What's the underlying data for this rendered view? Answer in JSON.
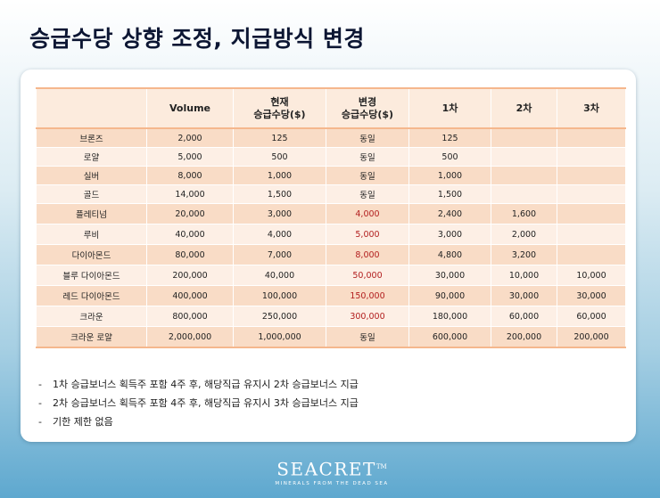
{
  "title": "승급수당 상향 조정, 지급방식 변경",
  "table": {
    "headers": [
      "",
      "Volume",
      "현재\n승급수당($)",
      "변경\n승급수당($)",
      "1차",
      "2차",
      "3차"
    ],
    "rows": [
      [
        "브론즈",
        "2,000",
        "125",
        "동일",
        "125",
        "",
        ""
      ],
      [
        "로얄",
        "5,000",
        "500",
        "동일",
        "500",
        "",
        ""
      ],
      [
        "실버",
        "8,000",
        "1,000",
        "동일",
        "1,000",
        "",
        ""
      ],
      [
        "골드",
        "14,000",
        "1,500",
        "동일",
        "1,500",
        "",
        ""
      ],
      [
        "플레티넘",
        "20,000",
        "3,000",
        "4,000",
        "2,400",
        "1,600",
        ""
      ],
      [
        "루비",
        "40,000",
        "4,000",
        "5,000",
        "3,000",
        "2,000",
        ""
      ],
      [
        "다이아몬드",
        "80,000",
        "7,000",
        "8,000",
        "4,800",
        "3,200",
        ""
      ],
      [
        "블루 다이아몬드",
        "200,000",
        "40,000",
        "50,000",
        "30,000",
        "10,000",
        "10,000"
      ],
      [
        "레드 다이아몬드",
        "400,000",
        "100,000",
        "150,000",
        "90,000",
        "30,000",
        "30,000"
      ],
      [
        "크라운",
        "800,000",
        "250,000",
        "300,000",
        "180,000",
        "60,000",
        "60,000"
      ],
      [
        "크라운 로얄",
        "2,000,000",
        "1,000,000",
        "동일",
        "600,000",
        "200,000",
        "200,000"
      ]
    ],
    "highlight_color": "#b21e1e"
  },
  "notes": [
    "1차 승급보너스 획득주 포함 4주 후, 해당직급 유지시 2차 승급보너스 지급",
    "2차 승급보너스 획득주 포함 4주 후, 해당직급 유지시 3차 승급보너스 지급",
    "기한 제한 없음"
  ],
  "note_dash": "-",
  "brand": {
    "name": "SEACRET",
    "trademark": "TM",
    "tagline": "MINERALS FROM THE DEAD SEA"
  }
}
